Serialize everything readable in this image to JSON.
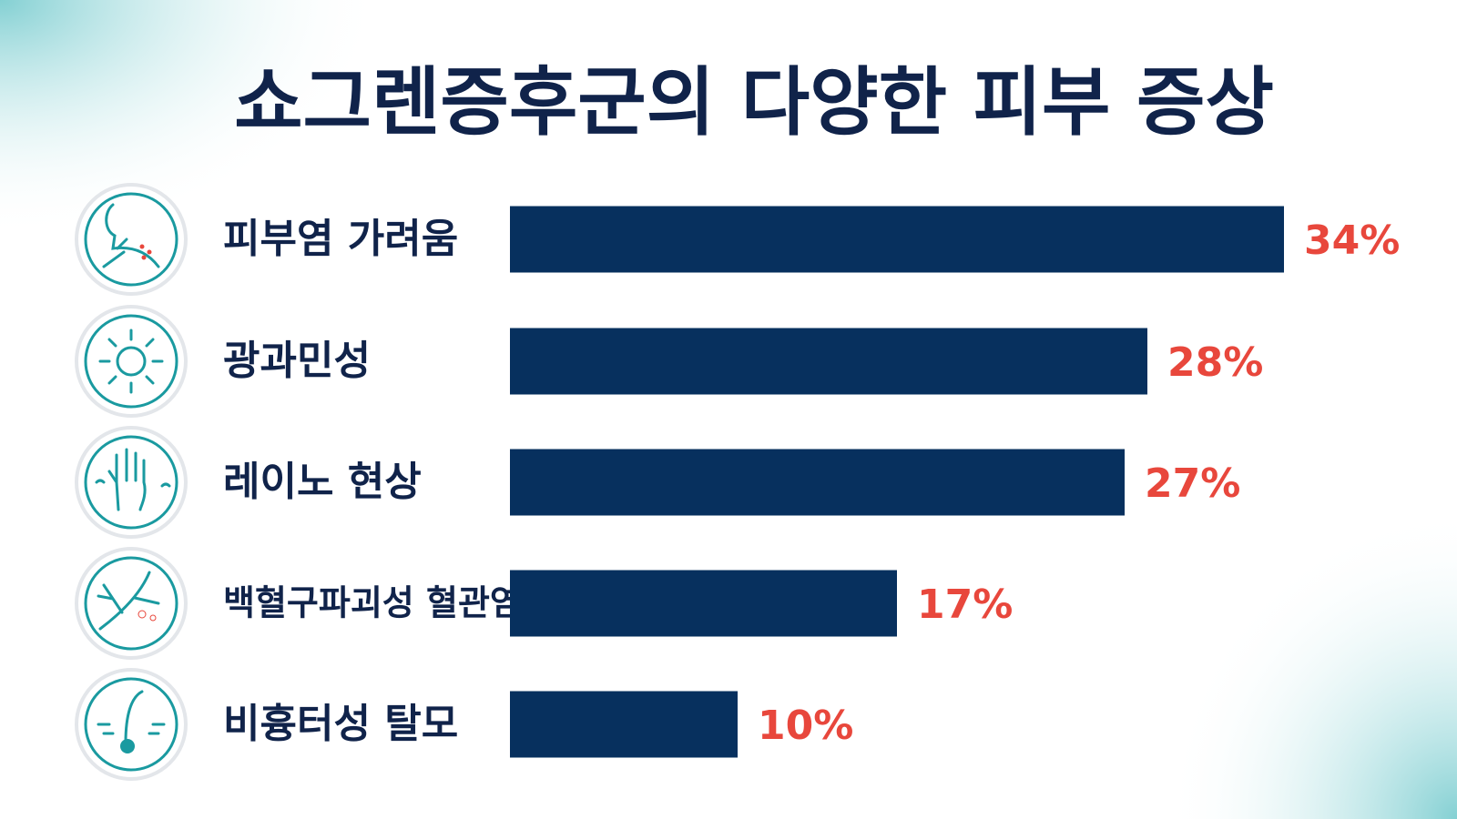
{
  "chart_data": {
    "type": "hbar",
    "title": "쇼그렌증후군의 다양한 피부 증상",
    "categories": [
      "피부염 가려움",
      "광과민성",
      "레이노 현상",
      "백혈구파괴성 혈관염",
      "비흉터성 탈모"
    ],
    "values": [
      34,
      28,
      27,
      17,
      10
    ],
    "value_labels": [
      "34%",
      "28%",
      "27%",
      "17%",
      "10%"
    ],
    "color": "#07305e",
    "label_color": "#e8473c"
  }
}
